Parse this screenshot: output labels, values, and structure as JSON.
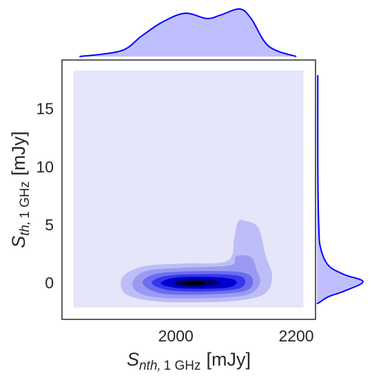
{
  "chart_data": {
    "type": "jointkde",
    "x_label": {
      "symbol": "S",
      "sub_italic": "nth,",
      "sub": "1 GHz",
      "unit": "[mJy]"
    },
    "y_label": {
      "symbol": "S",
      "sub_italic": "th,",
      "sub": "1 GHz",
      "unit": "[mJy]"
    },
    "xlim": [
      1811,
      2232
    ],
    "ylim": [
      -3.15,
      19.2
    ],
    "xticks": [
      2000,
      2200
    ],
    "yticks": [
      0,
      5,
      10,
      15
    ],
    "color": "#0000ff",
    "contours": [
      {
        "color": "#e6e6fa",
        "x": [
          1830,
          2212,
          2212,
          1830
        ],
        "y": [
          18.3,
          18.3,
          -2.14,
          -2.14
        ]
      },
      {
        "color": "#bdbdf7",
        "x": [
          1908.6,
          1920,
          1954,
          2017,
          2086,
          2097,
          2103,
          2114,
          2137,
          2149,
          2160,
          2149,
          2109,
          2051,
          1971,
          1920
        ],
        "y": [
          0,
          0.89,
          1.49,
          1.67,
          1.9,
          3.87,
          5.24,
          5.36,
          4.76,
          2.38,
          0.6,
          -0.89,
          -1.49,
          -1.67,
          -1.61,
          -1.07
        ]
      },
      {
        "color": "#9a9af3",
        "x": [
          1928,
          1950,
          2010,
          2090,
          2100,
          2125,
          2135,
          2140,
          2120,
          2060,
          1980,
          1940
        ],
        "y": [
          0,
          1.0,
          1.3,
          1.5,
          2.3,
          2.2,
          1.0,
          0,
          -1.0,
          -1.3,
          -1.3,
          -0.9
        ]
      },
      {
        "color": "#6c6cef",
        "x": [
          1945,
          1970,
          2040,
          2110,
          2128,
          2115,
          2050,
          1975
        ],
        "y": [
          0,
          0.8,
          1.0,
          0.9,
          0.2,
          -0.7,
          -1.0,
          -0.9
        ]
      },
      {
        "color": "#3636ec",
        "x": [
          1960,
          1985,
          2050,
          2105,
          2115,
          2100,
          2040,
          1985
        ],
        "y": [
          0,
          0.6,
          0.75,
          0.6,
          0,
          -0.55,
          -0.75,
          -0.6
        ]
      },
      {
        "color": "#0000d0",
        "x": [
          1975,
          2000,
          2060,
          2095,
          2100,
          2080,
          2020,
          1990
        ],
        "y": [
          0,
          0.45,
          0.5,
          0.3,
          -0.1,
          -0.45,
          -0.5,
          -0.35
        ]
      },
      {
        "color": "#00006a",
        "x": [
          1995,
          2015,
          2055,
          2075,
          2050,
          2010
        ],
        "y": [
          0,
          0.3,
          0.3,
          0,
          -0.3,
          -0.3
        ]
      },
      {
        "color": "#000010",
        "x": [
          2010,
          2025,
          2045,
          2045,
          2020
        ],
        "y": [
          0,
          0.18,
          0.1,
          -0.15,
          -0.18
        ]
      }
    ],
    "x_marginal": {
      "x": [
        1840,
        1909,
        1943,
        1977,
        2015,
        2051,
        2074,
        2106,
        2125,
        2154,
        2200
      ],
      "values": [
        0,
        0.12,
        0.43,
        0.72,
        0.91,
        0.8,
        0.87,
        1.0,
        0.8,
        0.22,
        0
      ]
    },
    "y_marginal": {
      "y": [
        17.9,
        10,
        5,
        3,
        1.5,
        0.7,
        0.1,
        -0.7,
        -1.2,
        -1.7,
        -1.8
      ],
      "values": [
        0.02,
        0.02,
        0.04,
        0.08,
        0.25,
        0.6,
        1.0,
        0.6,
        0.25,
        0.05,
        0
      ]
    }
  }
}
